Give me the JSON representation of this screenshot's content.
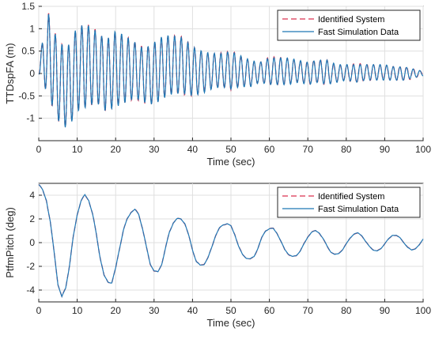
{
  "chart_data": [
    {
      "type": "line",
      "title": "",
      "xlabel": "Time (sec)",
      "ylabel": "TTDspFA (m)",
      "xlim": [
        0,
        100
      ],
      "ylim": [
        -1.5,
        1.5
      ],
      "xticks": [
        0,
        10,
        20,
        30,
        40,
        50,
        60,
        70,
        80,
        90,
        100
      ],
      "yticks": [
        -1,
        -0.5,
        0,
        0.5,
        1,
        1.5
      ],
      "ytick_labels": [
        "-1",
        "-0.5",
        "0",
        "0.5",
        "1",
        "1.5"
      ],
      "grid": true,
      "legend_position": "top-right",
      "series": [
        {
          "name": "Identified System",
          "style": "dashed",
          "color": "#d9304f",
          "x": [
            0,
            2.5,
            5,
            7.5,
            10,
            12.5,
            15,
            17.5,
            20,
            22.5,
            25,
            27.5,
            30,
            32.5,
            35,
            37.5,
            40,
            42.5,
            45,
            47.5,
            50,
            52.5,
            55,
            57.5,
            60,
            62.5,
            65,
            67.5,
            70,
            72.5,
            75,
            77.5,
            80,
            82.5,
            85,
            87.5,
            90,
            92.5,
            95,
            97.5,
            100
          ],
          "upper_envelope": [
            0.3,
            1.35,
            0.7,
            0.6,
            1.05,
            1.1,
            0.95,
            0.75,
            0.95,
            0.85,
            0.7,
            0.55,
            0.7,
            0.85,
            0.85,
            0.8,
            0.6,
            0.5,
            0.45,
            0.45,
            0.5,
            0.4,
            0.3,
            0.25,
            0.35,
            0.35,
            0.35,
            0.3,
            0.25,
            0.3,
            0.3,
            0.2,
            0.2,
            0.2,
            0.2,
            0.2,
            0.2,
            0.15,
            0.15,
            0.1,
            0.05
          ],
          "lower_envelope": [
            0.0,
            -0.5,
            -1.05,
            -1.25,
            -0.85,
            -0.75,
            -0.65,
            -0.85,
            -0.75,
            -0.65,
            -0.55,
            -0.65,
            -0.7,
            -0.55,
            -0.45,
            -0.45,
            -0.5,
            -0.45,
            -0.35,
            -0.3,
            -0.35,
            -0.3,
            -0.3,
            -0.2,
            -0.25,
            -0.25,
            -0.25,
            -0.2,
            -0.25,
            -0.2,
            -0.25,
            -0.2,
            -0.15,
            -0.2,
            -0.15,
            -0.15,
            -0.15,
            -0.15,
            -0.15,
            -0.1,
            -0.05
          ]
        },
        {
          "name": "Fast Simulation Data",
          "style": "solid",
          "color": "#1f77b4"
        }
      ]
    },
    {
      "type": "line",
      "title": "",
      "xlabel": "Time (sec)",
      "ylabel": "PtfmPitch (deg)",
      "xlim": [
        0,
        100
      ],
      "ylim": [
        -5,
        5
      ],
      "xticks": [
        0,
        10,
        20,
        30,
        40,
        50,
        60,
        70,
        80,
        90,
        100
      ],
      "yticks": [
        -4,
        -2,
        0,
        2,
        4
      ],
      "ytick_labels": [
        "-4",
        "-2",
        "0",
        "2",
        "4"
      ],
      "grid": true,
      "legend_position": "top-right",
      "series": [
        {
          "name": "Identified System",
          "style": "dashed",
          "color": "#d9304f",
          "x": [
            0,
            1,
            2,
            3,
            4,
            5,
            6,
            7,
            8,
            9,
            10,
            11,
            12,
            13,
            14,
            15,
            16,
            17,
            18,
            19,
            20,
            21,
            22,
            23,
            24,
            25,
            26,
            27,
            28,
            29,
            30,
            31,
            32,
            33,
            34,
            35,
            36,
            37,
            38,
            39,
            40,
            41,
            42,
            43,
            44,
            45,
            46,
            47,
            48,
            49,
            50,
            51,
            52,
            53,
            54,
            55,
            56,
            57,
            58,
            59,
            60,
            61,
            62,
            63,
            64,
            65,
            66,
            67,
            68,
            69,
            70,
            71,
            72,
            73,
            74,
            75,
            76,
            77,
            78,
            79,
            80,
            81,
            82,
            83,
            84,
            85,
            86,
            87,
            88,
            89,
            90,
            91,
            92,
            93,
            94,
            95,
            96,
            97,
            98,
            99,
            100
          ],
          "y": [
            4.9,
            4.4,
            3.6,
            1.7,
            -0.8,
            -3.5,
            -4.6,
            -3.8,
            -1.9,
            0.5,
            2.4,
            3.5,
            4.0,
            3.6,
            2.4,
            0.7,
            -1.3,
            -2.8,
            -3.3,
            -3.4,
            -2.2,
            -0.5,
            1.0,
            2.0,
            2.6,
            2.8,
            2.4,
            1.2,
            -0.4,
            -1.8,
            -2.4,
            -2.5,
            -1.8,
            -0.4,
            0.9,
            1.7,
            2.0,
            2.0,
            1.6,
            0.6,
            -0.6,
            -1.6,
            -1.9,
            -1.8,
            -1.3,
            -0.4,
            0.6,
            1.2,
            1.5,
            1.6,
            1.4,
            0.7,
            -0.3,
            -1.0,
            -1.3,
            -1.4,
            -1.2,
            -0.5,
            0.4,
            1.0,
            1.2,
            1.2,
            0.8,
            0.1,
            -0.6,
            -1.0,
            -1.2,
            -1.1,
            -0.7,
            -0.1,
            0.5,
            0.9,
            1.0,
            0.8,
            0.3,
            -0.3,
            -0.8,
            -1.0,
            -0.9,
            -0.6,
            -0.1,
            0.4,
            0.7,
            0.8,
            0.6,
            0.1,
            -0.3,
            -0.6,
            -0.7,
            -0.5,
            -0.1,
            0.3,
            0.6,
            0.6,
            0.4,
            0.0,
            -0.4,
            -0.6,
            -0.5,
            -0.2,
            0.3
          ]
        },
        {
          "name": "Fast Simulation Data",
          "style": "solid",
          "color": "#1f77b4"
        }
      ]
    }
  ]
}
